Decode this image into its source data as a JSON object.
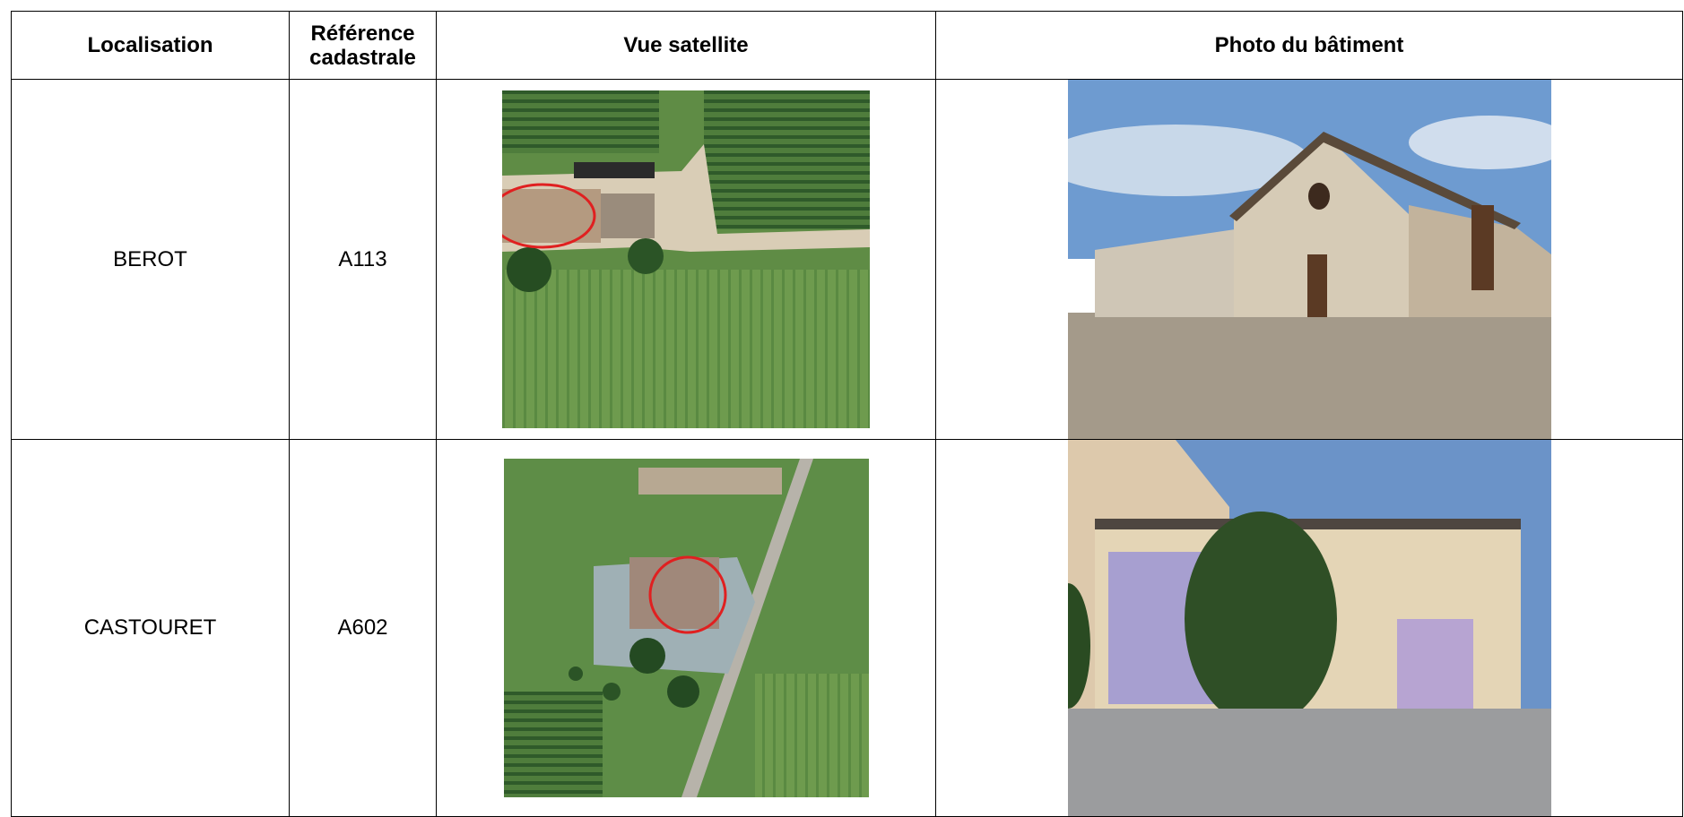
{
  "table": {
    "header": [
      "Localisation",
      "Référence cadastrale",
      "Vue satellite",
      "Photo du bâtiment"
    ],
    "rows": [
      [
        "BEROT",
        "A113"
      ],
      [
        "CASTOURET",
        "A602"
      ]
    ]
  }
}
